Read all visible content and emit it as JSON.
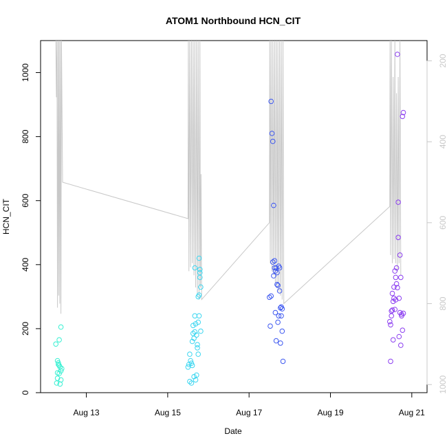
{
  "chart_data": {
    "type": "scatter",
    "title": "ATOM1 Northbound HCN_CIT",
    "xlabel": "Date",
    "ylabel": "HCN_CIT",
    "xlim": [
      "2023-08-11T21:00",
      "2023-08-21T09:00"
    ],
    "ylim": [
      0,
      1100
    ],
    "y2lim": [
      1020,
      150
    ],
    "x_ticks": [
      {
        "date": "2023-08-13T00:00",
        "label": "Aug 13"
      },
      {
        "date": "2023-08-15T00:00",
        "label": "Aug 15"
      },
      {
        "date": "2023-08-17T00:00",
        "label": "Aug 17"
      },
      {
        "date": "2023-08-19T00:00",
        "label": "Aug 19"
      },
      {
        "date": "2023-08-21T00:00",
        "label": "Aug 21"
      }
    ],
    "y_ticks": [
      0,
      200,
      400,
      600,
      800,
      1000
    ],
    "y2_ticks": [
      200,
      400,
      600,
      800,
      1000
    ],
    "grid": false,
    "colors": {
      "deployment_1": "#36f0d2",
      "deployment_2": "#3ad6f0",
      "deployment_3": "#3b56f0",
      "deployment_4": "#8a3bf0",
      "depth_line": "#c8c8c8"
    },
    "depth_series": [
      [
        "2023-08-12T06:00",
        150
      ],
      [
        "2023-08-12T06:20",
        290
      ],
      [
        "2023-08-12T06:40",
        150
      ],
      [
        "2023-08-12T07:00",
        810
      ],
      [
        "2023-08-12T07:20",
        150
      ],
      [
        "2023-08-12T07:40",
        780
      ],
      [
        "2023-08-12T08:00",
        150
      ],
      [
        "2023-08-12T08:20",
        800
      ],
      [
        "2023-08-12T08:40",
        150
      ],
      [
        "2023-08-12T09:00",
        825
      ],
      [
        "2023-08-12T09:20",
        150
      ],
      [
        "2023-08-12T10:00",
        500
      ],
      [
        "2023-08-15T12:00",
        590
      ],
      [
        "2023-08-15T12:10",
        150
      ],
      [
        "2023-08-15T12:30",
        720
      ],
      [
        "2023-08-15T13:00",
        150
      ],
      [
        "2023-08-15T13:30",
        710
      ],
      [
        "2023-08-15T14:00",
        150
      ],
      [
        "2023-08-15T14:30",
        700
      ],
      [
        "2023-08-15T15:00",
        150
      ],
      [
        "2023-08-15T15:30",
        730
      ],
      [
        "2023-08-15T16:00",
        150
      ],
      [
        "2023-08-15T16:30",
        760
      ],
      [
        "2023-08-15T17:00",
        150
      ],
      [
        "2023-08-15T17:30",
        780
      ],
      [
        "2023-08-15T18:00",
        150
      ],
      [
        "2023-08-15T18:30",
        790
      ],
      [
        "2023-08-15T19:00",
        150
      ],
      [
        "2023-08-15T19:20",
        760
      ],
      [
        "2023-08-15T19:40",
        480
      ],
      [
        "2023-08-15T20:00",
        790
      ],
      [
        "2023-08-17T12:00",
        600
      ],
      [
        "2023-08-17T12:10",
        150
      ],
      [
        "2023-08-17T12:30",
        700
      ],
      [
        "2023-08-17T13:00",
        150
      ],
      [
        "2023-08-17T13:30",
        720
      ],
      [
        "2023-08-17T14:00",
        150
      ],
      [
        "2023-08-17T14:30",
        730
      ],
      [
        "2023-08-17T15:00",
        150
      ],
      [
        "2023-08-17T15:30",
        750
      ],
      [
        "2023-08-17T16:00",
        150
      ],
      [
        "2023-08-17T16:30",
        760
      ],
      [
        "2023-08-17T17:00",
        150
      ],
      [
        "2023-08-17T17:30",
        770
      ],
      [
        "2023-08-17T18:00",
        150
      ],
      [
        "2023-08-17T18:30",
        780
      ],
      [
        "2023-08-17T19:00",
        150
      ],
      [
        "2023-08-17T19:30",
        790
      ],
      [
        "2023-08-17T20:00",
        150
      ],
      [
        "2023-08-17T20:30",
        800
      ],
      [
        "2023-08-20T11:00",
        560
      ],
      [
        "2023-08-20T11:10",
        150
      ],
      [
        "2023-08-20T11:30",
        680
      ],
      [
        "2023-08-20T12:00",
        150
      ],
      [
        "2023-08-20T12:30",
        700
      ],
      [
        "2023-08-20T13:00",
        240
      ],
      [
        "2023-08-20T13:30",
        690
      ],
      [
        "2023-08-20T14:00",
        150
      ],
      [
        "2023-08-20T14:30",
        700
      ],
      [
        "2023-08-20T15:00",
        280
      ],
      [
        "2023-08-20T15:30",
        720
      ],
      [
        "2023-08-20T16:00",
        240
      ],
      [
        "2023-08-20T16:30",
        700
      ],
      [
        "2023-08-20T17:00",
        150
      ],
      [
        "2023-08-20T17:30",
        730
      ]
    ],
    "series": [
      {
        "color_key": "deployment_1",
        "points": [
          [
            "2023-08-12T06:00",
            152
          ],
          [
            "2023-08-12T06:30",
            30
          ],
          [
            "2023-08-12T07:00",
            100
          ],
          [
            "2023-08-12T07:00",
            45
          ],
          [
            "2023-08-12T07:00",
            62
          ],
          [
            "2023-08-12T07:30",
            93
          ],
          [
            "2023-08-12T07:30",
            88
          ],
          [
            "2023-08-12T08:00",
            165
          ],
          [
            "2023-08-12T08:00",
            85
          ],
          [
            "2023-08-12T08:00",
            60
          ],
          [
            "2023-08-12T08:30",
            27
          ],
          [
            "2023-08-12T08:30",
            80
          ],
          [
            "2023-08-12T09:00",
            40
          ],
          [
            "2023-08-12T09:00",
            205
          ],
          [
            "2023-08-12T09:00",
            68
          ],
          [
            "2023-08-12T09:30",
            75
          ]
        ]
      },
      {
        "color_key": "deployment_2",
        "points": [
          [
            "2023-08-15T12:00",
            80
          ],
          [
            "2023-08-15T12:30",
            88
          ],
          [
            "2023-08-15T13:00",
            120
          ],
          [
            "2023-08-15T13:00",
            35
          ],
          [
            "2023-08-15T13:30",
            100
          ],
          [
            "2023-08-15T14:00",
            30
          ],
          [
            "2023-08-15T14:00",
            92
          ],
          [
            "2023-08-15T14:30",
            160
          ],
          [
            "2023-08-15T14:30",
            85
          ],
          [
            "2023-08-15T15:00",
            185
          ],
          [
            "2023-08-15T15:00",
            210
          ],
          [
            "2023-08-15T15:30",
            170
          ],
          [
            "2023-08-15T15:30",
            50
          ],
          [
            "2023-08-15T16:00",
            190
          ],
          [
            "2023-08-15T16:00",
            240
          ],
          [
            "2023-08-15T16:00",
            390
          ],
          [
            "2023-08-15T16:30",
            215
          ],
          [
            "2023-08-15T16:30",
            40
          ],
          [
            "2023-08-15T17:00",
            55
          ],
          [
            "2023-08-15T17:00",
            180
          ],
          [
            "2023-08-15T17:30",
            150
          ],
          [
            "2023-08-15T17:30",
            140
          ],
          [
            "2023-08-15T18:00",
            120
          ],
          [
            "2023-08-15T18:00",
            220
          ],
          [
            "2023-08-15T18:00",
            300
          ],
          [
            "2023-08-15T18:30",
            420
          ],
          [
            "2023-08-15T18:30",
            240
          ],
          [
            "2023-08-15T18:30",
            305
          ],
          [
            "2023-08-15T19:00",
            360
          ],
          [
            "2023-08-15T19:00",
            385
          ],
          [
            "2023-08-15T19:00",
            375
          ],
          [
            "2023-08-15T19:30",
            330
          ],
          [
            "2023-08-15T19:30",
            192
          ]
        ]
      },
      {
        "color_key": "deployment_3",
        "points": [
          [
            "2023-08-17T12:00",
            298
          ],
          [
            "2023-08-17T12:30",
            208
          ],
          [
            "2023-08-17T13:00",
            302
          ],
          [
            "2023-08-17T13:00",
            910
          ],
          [
            "2023-08-17T13:30",
            810
          ],
          [
            "2023-08-17T14:00",
            785
          ],
          [
            "2023-08-17T14:00",
            408
          ],
          [
            "2023-08-17T14:30",
            585
          ],
          [
            "2023-08-17T14:30",
            365
          ],
          [
            "2023-08-17T15:00",
            390
          ],
          [
            "2023-08-17T15:00",
            412
          ],
          [
            "2023-08-17T15:30",
            250
          ],
          [
            "2023-08-17T15:30",
            380
          ],
          [
            "2023-08-17T16:00",
            162
          ],
          [
            "2023-08-17T16:00",
            390
          ],
          [
            "2023-08-17T16:30",
            375
          ],
          [
            "2023-08-17T16:30",
            338
          ],
          [
            "2023-08-17T17:00",
            220
          ],
          [
            "2023-08-17T17:00",
            335
          ],
          [
            "2023-08-17T17:30",
            240
          ],
          [
            "2023-08-17T17:30",
            395
          ],
          [
            "2023-08-17T18:00",
            390
          ],
          [
            "2023-08-17T18:00",
            318
          ],
          [
            "2023-08-17T18:30",
            265
          ],
          [
            "2023-08-17T18:30",
            155
          ],
          [
            "2023-08-17T19:00",
            240
          ],
          [
            "2023-08-17T19:00",
            268
          ],
          [
            "2023-08-17T19:30",
            262
          ],
          [
            "2023-08-17T19:30",
            192
          ],
          [
            "2023-08-17T20:00",
            98
          ]
        ]
      },
      {
        "color_key": "deployment_4",
        "points": [
          [
            "2023-08-20T11:00",
            222
          ],
          [
            "2023-08-20T11:30",
            212
          ],
          [
            "2023-08-20T11:30",
            98
          ],
          [
            "2023-08-20T12:00",
            255
          ],
          [
            "2023-08-20T12:00",
            240
          ],
          [
            "2023-08-20T12:30",
            310
          ],
          [
            "2023-08-20T12:30",
            258
          ],
          [
            "2023-08-20T13:00",
            165
          ],
          [
            "2023-08-20T13:00",
            285
          ],
          [
            "2023-08-20T13:30",
            330
          ],
          [
            "2023-08-20T13:30",
            295
          ],
          [
            "2023-08-20T14:00",
            380
          ],
          [
            "2023-08-20T14:00",
            260
          ],
          [
            "2023-08-20T14:30",
            290
          ],
          [
            "2023-08-20T14:30",
            360
          ],
          [
            "2023-08-20T15:00",
            390
          ],
          [
            "2023-08-20T15:00",
            340
          ],
          [
            "2023-08-20T15:30",
            328
          ],
          [
            "2023-08-20T15:30",
            1057
          ],
          [
            "2023-08-20T16:00",
            595
          ],
          [
            "2023-08-20T16:00",
            485
          ],
          [
            "2023-08-20T16:30",
            295
          ],
          [
            "2023-08-20T16:30",
            175
          ],
          [
            "2023-08-20T17:00",
            250
          ],
          [
            "2023-08-20T17:00",
            430
          ],
          [
            "2023-08-20T17:30",
            360
          ],
          [
            "2023-08-20T17:30",
            148
          ],
          [
            "2023-08-20T18:00",
            240
          ],
          [
            "2023-08-20T18:00",
            245
          ],
          [
            "2023-08-20T18:30",
            195
          ],
          [
            "2023-08-20T18:30",
            863
          ],
          [
            "2023-08-20T19:00",
            875
          ],
          [
            "2023-08-20T19:00",
            248
          ]
        ]
      }
    ]
  }
}
